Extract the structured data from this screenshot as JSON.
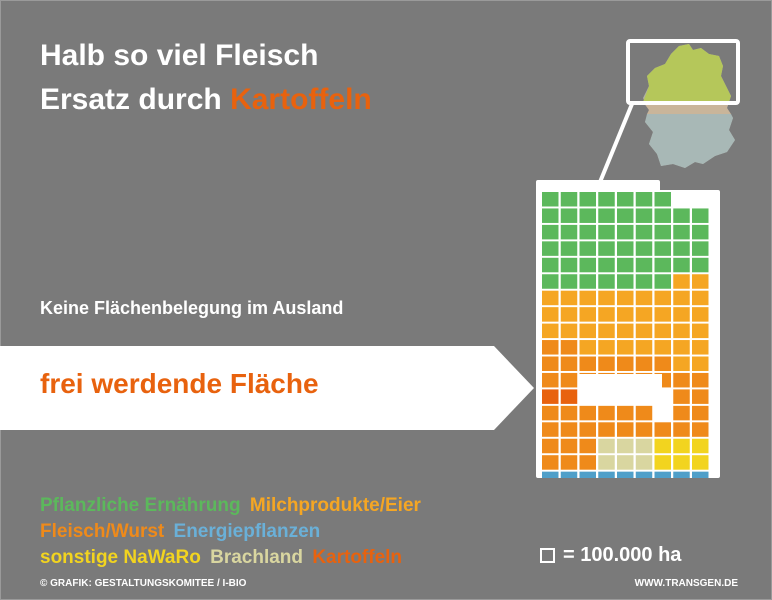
{
  "title": {
    "line1": "Halb so viel Fleisch",
    "line2_prefix": "Ersatz durch ",
    "line2_highlight": "Kartoffeln"
  },
  "subtitle": "Keine Flächenbelegung im Ausland",
  "arrow_label": "frei werdende Fläche",
  "legend": {
    "items": [
      {
        "label": "Pflanzliche Ernährung",
        "color": "#5cb85c"
      },
      {
        "label": "Milchprodukte/Eier",
        "color": "#f5a623"
      },
      {
        "label": "Fleisch/Wurst",
        "color": "#ef8a1a"
      },
      {
        "label": "Energiepflanzen",
        "color": "#6ab0d8"
      },
      {
        "label": "sonstige NaWaRo",
        "color": "#f2d41f"
      },
      {
        "label": "Brachland",
        "color": "#d9d6a0"
      },
      {
        "label": "Kartoffeln",
        "color": "#e8620e"
      }
    ]
  },
  "scale_label": "= 100.000 ha",
  "footer_left": "© GRAFIK: GESTALTUNGSKOMITEE / I-BIO",
  "footer_right": "WWW.TRANSGEN.DE",
  "colors": {
    "background": "#7a7a7a",
    "accent": "#e8620e",
    "green": "#5cb85c",
    "milk": "#f5a623",
    "meat": "#ef8a1a",
    "energy": "#4f9fc9",
    "nawaro": "#f2d41f",
    "brach": "#d9d6a0",
    "potato": "#e8620e",
    "empty": "#ffffff"
  },
  "icons": [
    "germany-map-icon",
    "grid-square-icon"
  ]
}
